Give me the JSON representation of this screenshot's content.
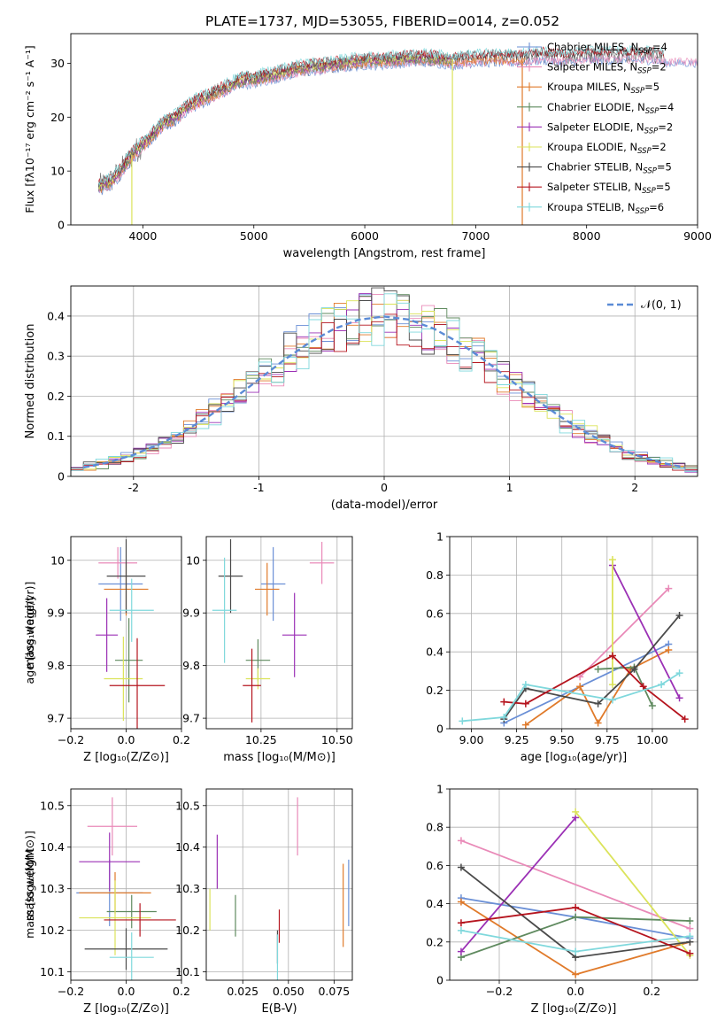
{
  "figure": {
    "title": "PLATE=1737, MJD=53055, FIBERID=0014, z=0.052"
  },
  "colors": {
    "Chabrier MILES": "#6a8fd6",
    "Salpeter MILES": "#e98ab8",
    "Kroupa MILES": "#e07a2a",
    "Chabrier ELODIE": "#5f8a5f",
    "Salpeter ELODIE": "#9b30b5",
    "Kroupa ELODIE": "#dbe35a",
    "Chabrier STELIB": "#4a4a4a",
    "Salpeter STELIB": "#b5141e",
    "Kroupa STELIB": "#7fd8dc",
    "gaussian": "#5b8bd6"
  },
  "chart_data": [
    {
      "id": "spectrum",
      "type": "line",
      "xlabel": "wavelength [Angstrom, rest frame]",
      "ylabel": "Flux [fλ10⁻¹⁷ erg cm⁻² s⁻¹ A⁻¹]",
      "xlim": [
        3350,
        9000
      ],
      "ylim": [
        0,
        35.5
      ],
      "xticks": [
        4000,
        5000,
        6000,
        7000,
        8000,
        9000
      ],
      "yticks": [
        0,
        10,
        20,
        30
      ],
      "grid": false,
      "legend_position": "top-right",
      "legend": [
        {
          "label": "Chabrier MILES, N",
          "sub": "SSP",
          "suffix": "=4"
        },
        {
          "label": "Salpeter MILES, N",
          "sub": "SSP",
          "suffix": "=2"
        },
        {
          "label": "Kroupa MILES, N",
          "sub": "SSP",
          "suffix": "=5"
        },
        {
          "label": "Chabrier ELODIE, N",
          "sub": "SSP",
          "suffix": "=4"
        },
        {
          "label": "Salpeter ELODIE, N",
          "sub": "SSP",
          "suffix": "=2"
        },
        {
          "label": "Kroupa ELODIE, N",
          "sub": "SSP",
          "suffix": "=2"
        },
        {
          "label": "Chabrier STELIB, N",
          "sub": "SSP",
          "suffix": "=5"
        },
        {
          "label": "Salpeter STELIB, N",
          "sub": "SSP",
          "suffix": "=5"
        },
        {
          "label": "Kroupa STELIB, N",
          "sub": "SSP",
          "suffix": "=6"
        }
      ],
      "models": [
        {
          "name": "Chabrier MILES",
          "x": [
            3600,
            9000
          ]
        },
        {
          "name": "Salpeter MILES",
          "x": [
            3600,
            9000
          ]
        },
        {
          "name": "Kroupa MILES",
          "x": [
            3600,
            7450
          ]
        },
        {
          "name": "Chabrier ELODIE",
          "x": [
            3600,
            6800
          ]
        },
        {
          "name": "Salpeter ELODIE",
          "x": [
            3600,
            6800
          ]
        },
        {
          "name": "Kroupa ELODIE",
          "x": [
            3600,
            6800
          ]
        },
        {
          "name": "Chabrier STELIB",
          "x": [
            3600,
            8700
          ]
        },
        {
          "name": "Salpeter STELIB",
          "x": [
            3600,
            8700
          ]
        },
        {
          "name": "Kroupa STELIB",
          "x": [
            3600,
            8700
          ]
        }
      ],
      "continuum": {
        "x": [
          3600,
          3700,
          3800,
          3900,
          4000,
          4100,
          4200,
          4300,
          4400,
          4500,
          4600,
          4700,
          4800,
          4900,
          5000,
          5200,
          5400,
          5600,
          5800,
          6000,
          6200,
          6400,
          6600,
          6800,
          7000,
          7200,
          7400,
          7600,
          7800,
          8000,
          8200,
          8400,
          8600,
          8700
        ],
        "y": [
          7,
          8,
          10,
          13,
          15,
          17,
          19,
          20,
          22,
          23,
          24,
          25,
          26,
          27,
          27,
          28,
          29,
          29.5,
          30,
          30.5,
          30.5,
          31,
          31,
          30.5,
          31,
          31,
          31,
          31.5,
          31,
          31.5,
          31.5,
          31.5,
          31.5,
          31
        ]
      }
    },
    {
      "id": "residuals",
      "type": "histogram",
      "xlabel": "(data-model)/error",
      "ylabel": "Normed distribution",
      "xlim": [
        -2.5,
        2.5
      ],
      "ylim": [
        0,
        0.475
      ],
      "xticks": [
        -2,
        -1,
        0,
        1,
        2
      ],
      "yticks": [
        0,
        0.1,
        0.2,
        0.3,
        0.4
      ],
      "grid": true,
      "legend_position": "top-right",
      "legend": "𝒩(0, 1)",
      "bin_edges": [
        -2.5,
        -2.4,
        -2.3,
        -2.2,
        -2.1,
        -2.0,
        -1.9,
        -1.8,
        -1.7,
        -1.6,
        -1.5,
        -1.4,
        -1.3,
        -1.2,
        -1.1,
        -1.0,
        -0.9,
        -0.8,
        -0.7,
        -0.6,
        -0.5,
        -0.4,
        -0.3,
        -0.2,
        -0.1,
        0.0,
        0.1,
        0.2,
        0.3,
        0.4,
        0.5,
        0.6,
        0.7,
        0.8,
        0.9,
        1.0,
        1.1,
        1.2,
        1.3,
        1.4,
        1.5,
        1.6,
        1.7,
        1.8,
        1.9,
        2.0,
        2.1,
        2.2,
        2.3,
        2.4,
        2.5
      ],
      "gaussian": {
        "x": [
          -2.4,
          -2.2,
          -2.0,
          -1.8,
          -1.6,
          -1.4,
          -1.2,
          -1.0,
          -0.8,
          -0.6,
          -0.4,
          -0.2,
          0.0,
          0.2,
          0.4,
          0.6,
          0.8,
          1.0,
          1.2,
          1.4,
          1.6,
          1.8,
          2.0,
          2.2,
          2.4
        ],
        "y": [
          0.022,
          0.035,
          0.054,
          0.079,
          0.111,
          0.15,
          0.194,
          0.242,
          0.29,
          0.333,
          0.368,
          0.391,
          0.399,
          0.391,
          0.368,
          0.333,
          0.29,
          0.242,
          0.194,
          0.15,
          0.111,
          0.079,
          0.054,
          0.035,
          0.022
        ]
      }
    },
    {
      "id": "age-vs-Z",
      "type": "scatter",
      "xlabel": "Z [log₁₀(Z/Z⊙)]",
      "ylabel": "age  [log₁₀(age/yr)]",
      "xlim": [
        -0.2,
        0.2
      ],
      "ylim": [
        9.68,
        10.045
      ],
      "xticks": [
        -0.2,
        0.0,
        0.2
      ],
      "xtick_labels": [
        "−0.2",
        "0.0",
        "0.2"
      ],
      "yticks": [
        9.7,
        9.8,
        9.9,
        10.0
      ],
      "grid": true,
      "points": [
        {
          "model": "Chabrier MILES",
          "x": -0.02,
          "y": 9.955,
          "xerr": 0.08,
          "yerr": 0.07
        },
        {
          "model": "Salpeter MILES",
          "x": -0.03,
          "y": 9.995,
          "xerr": 0.07,
          "yerr": 0.03
        },
        {
          "model": "Kroupa MILES",
          "x": 0.0,
          "y": 9.945,
          "xerr": 0.08,
          "yerr": 0.05
        },
        {
          "model": "Chabrier ELODIE",
          "x": 0.01,
          "y": 9.81,
          "xerr": 0.05,
          "yerr": 0.08
        },
        {
          "model": "Salpeter ELODIE",
          "x": -0.07,
          "y": 9.858,
          "xerr": 0.04,
          "yerr": 0.07
        },
        {
          "model": "Kroupa ELODIE",
          "x": -0.01,
          "y": 9.775,
          "xerr": 0.07,
          "yerr": 0.08
        },
        {
          "model": "Chabrier STELIB",
          "x": 0.0,
          "y": 9.97,
          "xerr": 0.07,
          "yerr": 0.07
        },
        {
          "model": "Salpeter STELIB",
          "x": 0.04,
          "y": 9.762,
          "xerr": 0.1,
          "yerr": 0.09
        },
        {
          "model": "Kroupa STELIB",
          "x": 0.02,
          "y": 9.905,
          "xerr": 0.08,
          "yerr": 0.06
        }
      ]
    },
    {
      "id": "age-vs-mass",
      "type": "scatter",
      "xlabel": "mass [log₁₀(M/M⊙)]",
      "ylabel": "",
      "xlim": [
        10.07,
        10.55
      ],
      "ylim": [
        9.68,
        10.045
      ],
      "xticks": [
        10.25,
        10.5
      ],
      "xtick_labels": [
        "10.25",
        "10.50"
      ],
      "yticks": [
        9.7,
        9.8,
        9.9,
        10.0
      ],
      "grid": true,
      "points": [
        {
          "model": "Chabrier MILES",
          "x": 10.29,
          "y": 9.955,
          "mx": 0.04,
          "yerr": 0.07
        },
        {
          "model": "Salpeter MILES",
          "x": 10.45,
          "y": 9.995,
          "mx": 0.04,
          "yerr": 0.04
        },
        {
          "model": "Kroupa MILES",
          "x": 10.27,
          "y": 9.945,
          "mx": 0.04,
          "yerr": 0.05
        },
        {
          "model": "Chabrier ELODIE",
          "x": 10.24,
          "y": 9.81,
          "mx": 0.04,
          "yerr": 0.04
        },
        {
          "model": "Salpeter ELODIE",
          "x": 10.36,
          "y": 9.858,
          "mx": 0.04,
          "yerr": 0.08
        },
        {
          "model": "Kroupa ELODIE",
          "x": 10.24,
          "y": 9.775,
          "mx": 0.04,
          "yerr": 0.02
        },
        {
          "model": "Chabrier STELIB",
          "x": 10.15,
          "y": 9.97,
          "mx": 0.04,
          "yerr": 0.07
        },
        {
          "model": "Salpeter STELIB",
          "x": 10.22,
          "y": 9.762,
          "mx": 0.03,
          "yerr": 0.07
        },
        {
          "model": "Kroupa STELIB",
          "x": 10.13,
          "y": 9.905,
          "mx": 0.04,
          "yerr": 0.1
        }
      ]
    },
    {
      "id": "weight-vs-age",
      "type": "line",
      "xlabel": "age  [log₁₀(age/yr)]",
      "ylabel": "mass weight",
      "xlim": [
        8.88,
        10.25
      ],
      "ylim": [
        0,
        1.0
      ],
      "xticks": [
        9.0,
        9.25,
        9.5,
        9.75,
        10.0
      ],
      "xtick_labels": [
        "9.00",
        "9.25",
        "9.50",
        "9.75",
        "10.00"
      ],
      "yticks": [
        0,
        0.2,
        0.4,
        0.6,
        0.8,
        1.0
      ],
      "grid": true,
      "series": [
        {
          "model": "Chabrier MILES",
          "x": [
            9.18,
            10.09
          ],
          "y": [
            0.03,
            0.44
          ]
        },
        {
          "model": "Salpeter MILES",
          "x": [
            9.6,
            10.09
          ],
          "y": [
            0.27,
            0.73
          ]
        },
        {
          "model": "Kroupa MILES",
          "x": [
            9.3,
            9.6,
            9.7,
            9.88,
            10.09
          ],
          "y": [
            0.02,
            0.22,
            0.03,
            0.31,
            0.41
          ]
        },
        {
          "model": "Chabrier ELODIE",
          "x": [
            9.7,
            9.9,
            10.0
          ],
          "y": [
            0.31,
            0.32,
            0.12
          ]
        },
        {
          "model": "Salpeter ELODIE",
          "x": [
            9.78,
            10.15
          ],
          "y": [
            0.85,
            0.16
          ]
        },
        {
          "model": "Kroupa ELODIE",
          "x": [
            9.78,
            9.78
          ],
          "y": [
            0.23,
            0.88
          ]
        },
        {
          "model": "Chabrier STELIB",
          "x": [
            9.18,
            9.3,
            9.7,
            9.9,
            10.15
          ],
          "y": [
            0.05,
            0.21,
            0.13,
            0.31,
            0.59
          ]
        },
        {
          "model": "Salpeter STELIB",
          "x": [
            9.18,
            9.3,
            9.78,
            9.95,
            10.18
          ],
          "y": [
            0.14,
            0.13,
            0.38,
            0.22,
            0.05
          ]
        },
        {
          "model": "Kroupa STELIB",
          "x": [
            8.95,
            9.18,
            9.3,
            9.78,
            10.05,
            10.15
          ],
          "y": [
            0.04,
            0.06,
            0.23,
            0.15,
            0.23,
            0.29
          ]
        }
      ]
    },
    {
      "id": "mass-vs-Z",
      "type": "scatter",
      "xlabel": "Z [log₁₀(Z/Z⊙)]",
      "ylabel": "mass [log₁₀(M/M⊙)]",
      "xlim": [
        -0.2,
        0.2
      ],
      "ylim": [
        10.08,
        10.54
      ],
      "xticks": [
        -0.2,
        0.0,
        0.2
      ],
      "xtick_labels": [
        "−0.2",
        "0.0",
        "0.2"
      ],
      "yticks": [
        10.1,
        10.2,
        10.3,
        10.4,
        10.5
      ],
      "grid": true,
      "points": [
        {
          "model": "Chabrier MILES",
          "x": -0.06,
          "y": 10.29,
          "xerr": 0.12,
          "yerr": 0.08
        },
        {
          "model": "Salpeter MILES",
          "x": -0.05,
          "y": 10.45,
          "xerr": 0.09,
          "yerr": 0.07
        },
        {
          "model": "Kroupa MILES",
          "x": -0.04,
          "y": 10.29,
          "xerr": 0.13,
          "yerr": 0.05
        },
        {
          "model": "Chabrier ELODIE",
          "x": 0.02,
          "y": 10.245,
          "xerr": 0.09,
          "yerr": 0.04
        },
        {
          "model": "Salpeter ELODIE",
          "x": -0.06,
          "y": 10.365,
          "xerr": 0.11,
          "yerr": 0.07
        },
        {
          "model": "Kroupa ELODIE",
          "x": -0.04,
          "y": 10.23,
          "xerr": 0.13,
          "yerr": 0.09
        },
        {
          "model": "Chabrier STELIB",
          "x": 0.0,
          "y": 10.155,
          "xerr": 0.15,
          "yerr": 0.05
        },
        {
          "model": "Salpeter STELIB",
          "x": 0.05,
          "y": 10.225,
          "xerr": 0.13,
          "yerr": 0.04
        },
        {
          "model": "Kroupa STELIB",
          "x": 0.02,
          "y": 10.135,
          "xerr": 0.08,
          "yerr": 0.06
        }
      ]
    },
    {
      "id": "mass-vs-ebv",
      "type": "scatter",
      "xlabel": "E(B-V)",
      "ylabel": "",
      "xlim": [
        0.005,
        0.085
      ],
      "ylim": [
        10.08,
        10.54
      ],
      "xticks": [
        0.025,
        0.05,
        0.075
      ],
      "xtick_labels": [
        "0.025",
        "0.050",
        "0.075"
      ],
      "yticks": [
        10.1,
        10.2,
        10.3,
        10.4,
        10.5
      ],
      "grid": true,
      "points": [
        {
          "model": "Chabrier MILES",
          "x": 0.083,
          "y": 10.29,
          "yerr": 0.08
        },
        {
          "model": "Salpeter MILES",
          "x": 0.055,
          "y": 10.45,
          "yerr": 0.07
        },
        {
          "model": "Kroupa MILES",
          "x": 0.08,
          "y": 10.26,
          "yerr": 0.1
        },
        {
          "model": "Chabrier ELODIE",
          "x": 0.021,
          "y": 10.235,
          "yerr": 0.05
        },
        {
          "model": "Salpeter ELODIE",
          "x": 0.011,
          "y": 10.365,
          "yerr": 0.065
        },
        {
          "model": "Kroupa ELODIE",
          "x": 0.007,
          "y": 10.25,
          "yerr": 0.05
        },
        {
          "model": "Chabrier STELIB",
          "x": 0.044,
          "y": 10.16,
          "yerr": 0.04
        },
        {
          "model": "Salpeter STELIB",
          "x": 0.045,
          "y": 10.21,
          "yerr": 0.04
        },
        {
          "model": "Kroupa STELIB",
          "x": 0.044,
          "y": 10.135,
          "yerr": 0.055
        }
      ]
    },
    {
      "id": "weight-vs-Z",
      "type": "line",
      "xlabel": "Z [log₁₀(Z/Z⊙)]",
      "ylabel": "mass weight",
      "xlim": [
        -0.33,
        0.32
      ],
      "ylim": [
        0,
        1.0
      ],
      "xticks": [
        -0.2,
        0.0,
        0.2
      ],
      "xtick_labels": [
        "−0.2",
        "0.0",
        "0.2"
      ],
      "yticks": [
        0,
        0.2,
        0.4,
        0.6,
        0.8,
        1.0
      ],
      "grid": true,
      "series": [
        {
          "model": "Chabrier MILES",
          "x": [
            -0.3,
            0.0,
            0.3
          ],
          "y": [
            0.43,
            0.33,
            0.22
          ]
        },
        {
          "model": "Salpeter MILES",
          "x": [
            -0.3,
            0.3
          ],
          "y": [
            0.73,
            0.27
          ]
        },
        {
          "model": "Kroupa MILES",
          "x": [
            -0.3,
            0.0,
            0.3
          ],
          "y": [
            0.41,
            0.03,
            0.2
          ]
        },
        {
          "model": "Chabrier ELODIE",
          "x": [
            -0.3,
            0.0,
            0.3
          ],
          "y": [
            0.12,
            0.33,
            0.31
          ]
        },
        {
          "model": "Salpeter ELODIE",
          "x": [
            -0.3,
            0.0
          ],
          "y": [
            0.15,
            0.85
          ]
        },
        {
          "model": "Kroupa ELODIE",
          "x": [
            0.0,
            0.3
          ],
          "y": [
            0.88,
            0.13
          ]
        },
        {
          "model": "Chabrier STELIB",
          "x": [
            -0.3,
            0.0,
            0.3
          ],
          "y": [
            0.59,
            0.12,
            0.2
          ]
        },
        {
          "model": "Salpeter STELIB",
          "x": [
            -0.3,
            0.0,
            0.3
          ],
          "y": [
            0.3,
            0.38,
            0.14
          ]
        },
        {
          "model": "Kroupa STELIB",
          "x": [
            -0.3,
            0.0,
            0.3
          ],
          "y": [
            0.26,
            0.15,
            0.23
          ]
        }
      ]
    }
  ]
}
